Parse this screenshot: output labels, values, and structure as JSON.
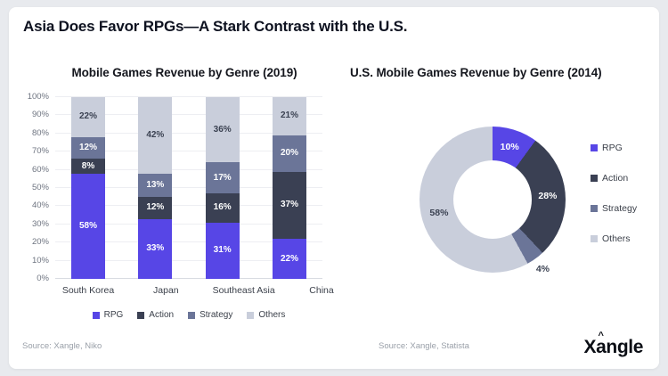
{
  "header": {
    "title": "Asia Does Favor RPGs—A Stark Contrast with the U.S."
  },
  "footer": {
    "source_left": "Source: Xangle, Niko",
    "source_right": "Source: Xangle, Statista",
    "logo": "Xangle"
  },
  "colors": {
    "rpg": "#5746E6",
    "action": "#3A4053",
    "strategy": "#6B7598",
    "others": "#C9CEDB",
    "page_bg": "#E8EAEE",
    "card_bg": "#FFFFFF",
    "grid": "#EDEEF2",
    "label_on_light": "#3B4252",
    "label_on_dark": "#FFFFFF"
  },
  "chart_data": [
    {
      "type": "bar",
      "variant": "stacked-100",
      "title": "Mobile Games Revenue by Genre (2019)",
      "categories": [
        "South Korea",
        "Japan",
        "Southeast Asia",
        "China"
      ],
      "series": [
        {
          "name": "RPG",
          "color_key": "rpg",
          "values": [
            58,
            33,
            31,
            22
          ]
        },
        {
          "name": "Action",
          "color_key": "action",
          "values": [
            8,
            12,
            16,
            37
          ]
        },
        {
          "name": "Strategy",
          "color_key": "strategy",
          "values": [
            12,
            13,
            17,
            20
          ]
        },
        {
          "name": "Others",
          "color_key": "others",
          "values": [
            22,
            42,
            36,
            21
          ]
        }
      ],
      "ylim": [
        0,
        100
      ],
      "ytick_step": 10,
      "yticks": [
        "0%",
        "10%",
        "20%",
        "30%",
        "40%",
        "50%",
        "60%",
        "70%",
        "80%",
        "90%",
        "100%"
      ],
      "grid": true,
      "legend_position": "bottom",
      "data_label_suffix": "%"
    },
    {
      "type": "pie",
      "variant": "donut",
      "title": "U.S. Mobile Games Revenue by Genre (2014)",
      "slices": [
        {
          "label": "RPG",
          "color_key": "rpg",
          "value": 10
        },
        {
          "label": "Action",
          "color_key": "action",
          "value": 28
        },
        {
          "label": "Strategy",
          "color_key": "strategy",
          "value": 4
        },
        {
          "label": "Others",
          "color_key": "others",
          "value": 58
        }
      ],
      "start_angle": 0,
      "legend_position": "right",
      "data_label_suffix": "%"
    }
  ]
}
